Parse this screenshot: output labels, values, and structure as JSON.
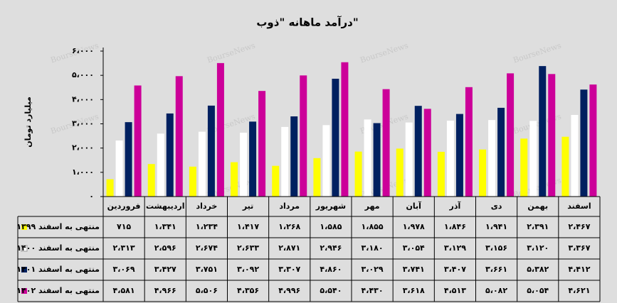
{
  "chart_data": {
    "type": "bar",
    "title": "درآمد ماهانه \"ذوب\"",
    "y_label": "میلیارد تومان",
    "watermark": "BourseNews",
    "categories": [
      "فروردین",
      "اردیبهشت",
      "خرداد",
      "تیر",
      "مرداد",
      "شهریور",
      "مهر",
      "آبان",
      "آذر",
      "دی",
      "بهمن",
      "اسفند"
    ],
    "ylim": [
      0,
      6000
    ],
    "yticks": [
      {
        "value": 0,
        "label": "۰"
      },
      {
        "value": 1000,
        "label": "۱،۰۰۰"
      },
      {
        "value": 2000,
        "label": "۲،۰۰۰"
      },
      {
        "value": 3000,
        "label": "۳،۰۰۰"
      },
      {
        "value": 4000,
        "label": "۴،۰۰۰"
      },
      {
        "value": 5000,
        "label": "۵،۰۰۰"
      },
      {
        "value": 6000,
        "label": "۶،۰۰۰"
      }
    ],
    "series": [
      {
        "name": "منتهی به اسفند ۱۳۹۹",
        "color": "#ffff00",
        "values": [
          715,
          1341,
          1234,
          1417,
          1268,
          1585,
          1855,
          1978,
          1846,
          1941,
          2391,
          2467
        ],
        "value_labels": [
          "۷۱۵",
          "۱،۳۴۱",
          "۱،۲۳۴",
          "۱،۴۱۷",
          "۱،۲۶۸",
          "۱،۵۸۵",
          "۱،۸۵۵",
          "۱،۹۷۸",
          "۱،۸۴۶",
          "۱،۹۴۱",
          "۲،۳۹۱",
          "۲،۴۶۷"
        ]
      },
      {
        "name": "منتهی به اسفند ۱۴۰۰",
        "color": "#ffffff",
        "values": [
          2313,
          2596,
          2674,
          2633,
          2871,
          2946,
          3180,
          3054,
          3129,
          3156,
          3120,
          3367
        ],
        "value_labels": [
          "۲،۳۱۳",
          "۲،۵۹۶",
          "۲،۶۷۴",
          "۲،۶۳۳",
          "۲،۸۷۱",
          "۲،۹۴۶",
          "۳،۱۸۰",
          "۳،۰۵۴",
          "۳،۱۲۹",
          "۳،۱۵۶",
          "۳،۱۲۰",
          "۳،۳۶۷"
        ]
      },
      {
        "name": "منتهی به اسفند ۱۴۰۱",
        "color": "#002060",
        "values": [
          3069,
          3427,
          3751,
          3092,
          3307,
          4860,
          3029,
          3741,
          3407,
          3661,
          5382,
          4412
        ],
        "value_labels": [
          "۳،۰۶۹",
          "۳،۴۲۷",
          "۳،۷۵۱",
          "۳،۰۹۲",
          "۳،۳۰۷",
          "۴،۸۶۰",
          "۳،۰۲۹",
          "۳،۷۴۱",
          "۳،۴۰۷",
          "۳،۶۶۱",
          "۵،۳۸۲",
          "۴،۴۱۲"
        ]
      },
      {
        "name": "منتهی به اسفند ۱۴۰۲",
        "color": "#cc0099",
        "values": [
          4581,
          4966,
          5506,
          4356,
          4996,
          5540,
          4430,
          3618,
          4513,
          5082,
          5054,
          4621
        ],
        "value_labels": [
          "۴،۵۸۱",
          "۴،۹۶۶",
          "۵،۵۰۶",
          "۴،۳۵۶",
          "۴،۹۹۶",
          "۵،۵۴۰",
          "۴،۴۳۰",
          "۳،۶۱۸",
          "۴،۵۱۳",
          "۵،۰۸۲",
          "۵،۰۵۴",
          "۴،۶۲۱"
        ]
      }
    ]
  }
}
